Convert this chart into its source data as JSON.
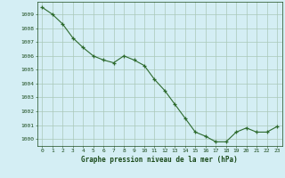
{
  "x": [
    0,
    1,
    2,
    3,
    4,
    5,
    6,
    7,
    8,
    9,
    10,
    11,
    12,
    13,
    14,
    15,
    16,
    17,
    18,
    19,
    20,
    21,
    22,
    23
  ],
  "y": [
    1009.5,
    1009.0,
    1008.3,
    1007.3,
    1006.6,
    1006.0,
    1005.7,
    1005.5,
    1006.0,
    1005.7,
    1005.3,
    1004.3,
    1003.5,
    1002.5,
    1001.5,
    1000.5,
    1000.2,
    999.8,
    999.8,
    1000.5,
    1000.8,
    1000.5,
    1000.5,
    1000.9
  ],
  "line_color": "#2d6a2d",
  "marker_color": "#2d6a2d",
  "bg_color": "#d4eef4",
  "grid_color": "#aac8b8",
  "xlabel": "Graphe pression niveau de la mer (hPa)",
  "xlabel_color": "#1a4a1a",
  "tick_color": "#1a4a1a",
  "ylim": [
    999.5,
    1009.9
  ],
  "xlim": [
    -0.5,
    23.5
  ],
  "yticks": [
    1000,
    1001,
    1002,
    1003,
    1004,
    1005,
    1006,
    1007,
    1008,
    1009
  ],
  "xticks": [
    0,
    1,
    2,
    3,
    4,
    5,
    6,
    7,
    8,
    9,
    10,
    11,
    12,
    13,
    14,
    15,
    16,
    17,
    18,
    19,
    20,
    21,
    22,
    23
  ]
}
